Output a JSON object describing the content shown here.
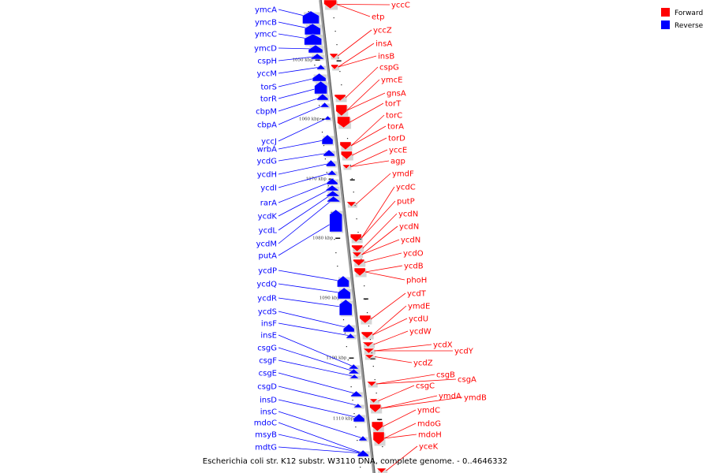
{
  "legend": {
    "forward": {
      "label": "Forward",
      "color": "#ff0000"
    },
    "reverse": {
      "label": "Reverse",
      "color": "#0000ff"
    }
  },
  "footer": {
    "text": "Escherichia coli str. K12 substr. W3110 DNA, complete genome. - 0..4646332"
  },
  "bp_markers": [
    "1050 kbp",
    "1060 kbp",
    "1070 kbp",
    "1080 kbp",
    "1090 kbp",
    "1100 kbp",
    "1110 kbp"
  ],
  "reverse_genes": [
    "ymcA",
    "ymcB",
    "ymcC",
    "ymcD",
    "cspH",
    "yccM",
    "torS",
    "torR",
    "cbpM",
    "cbpA",
    "yccJ",
    "wrbA",
    "ycdG",
    "ycdH",
    "ycdI",
    "rarA",
    "ycdK",
    "ycdL",
    "ycdM",
    "putA",
    "ycdP",
    "ycdQ",
    "ycdR",
    "ycdS",
    "insF",
    "insE",
    "csgG",
    "csgF",
    "csgE",
    "csgD",
    "insD",
    "insC",
    "mdoC",
    "msyB",
    "mdtG"
  ],
  "forward_genes": [
    "yccC",
    "etp",
    "yccZ",
    "insA",
    "insB",
    "cspG",
    "ymcE",
    "gnsA",
    "torT",
    "torC",
    "torA",
    "torD",
    "yccE",
    "agp",
    "ymdF",
    "ycdC",
    "putP",
    "ycdN",
    "ycdN",
    "ycdN",
    "ycdO",
    "ycdB",
    "phoH",
    "ycdT",
    "ymdE",
    "ycdU",
    "ycdW",
    "ycdX",
    "ycdY",
    "ycdZ",
    "csgB",
    "csgA",
    "csgC",
    "ymdA",
    "ymdB",
    "ymdC",
    "mdoG",
    "mdoH",
    "yceK"
  ]
}
